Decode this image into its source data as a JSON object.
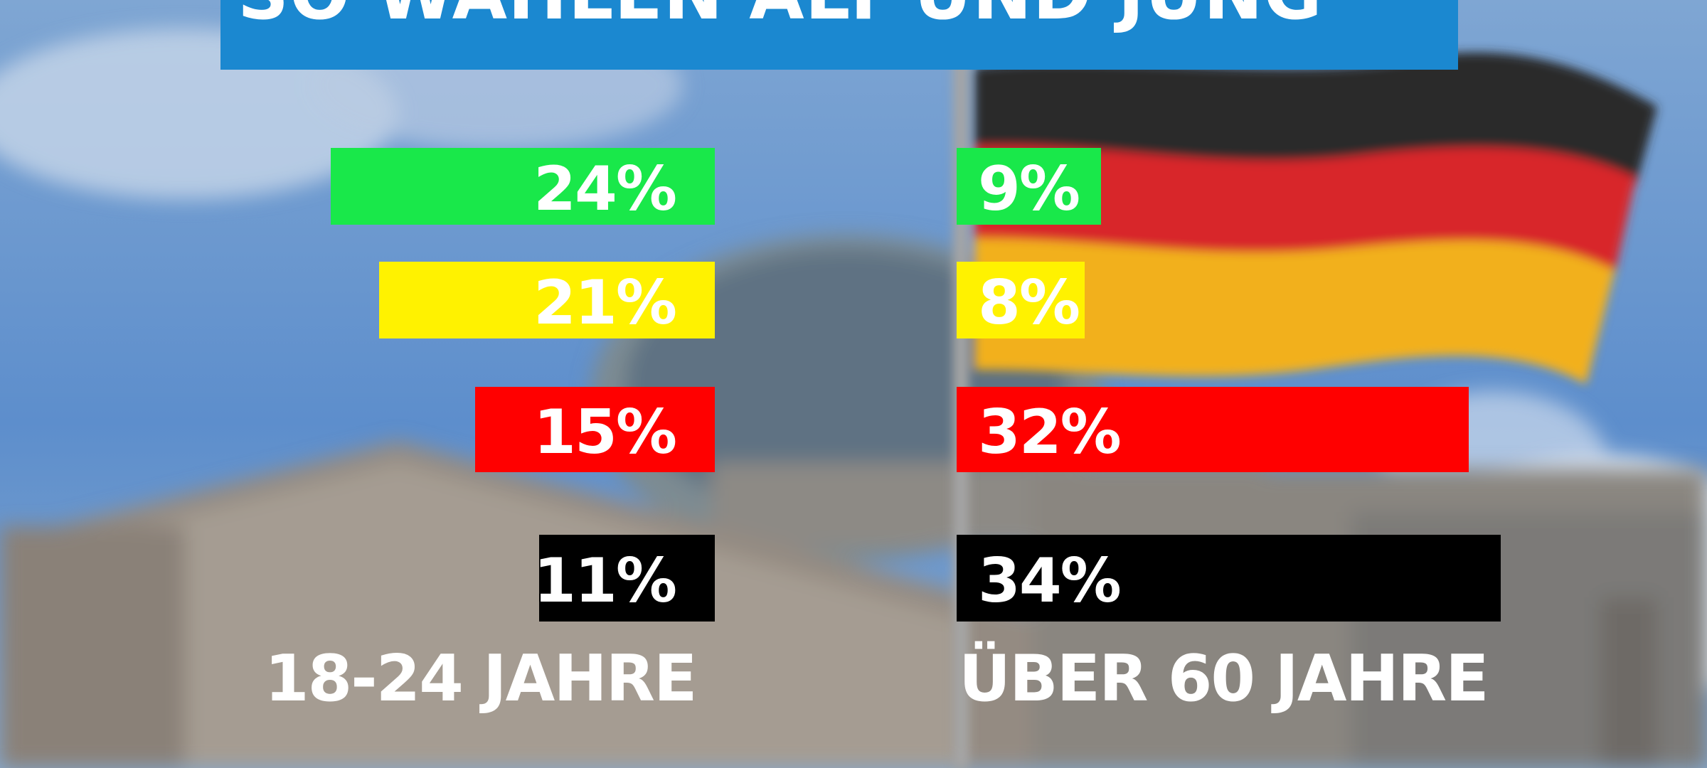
{
  "title": "SO WÄHLEN ALT UND JUNG",
  "chart_data": {
    "type": "bar",
    "groups": [
      "18-24 JAHRE",
      "ÜBER 60 JAHRE"
    ],
    "series": [
      {
        "color": "#19e84a",
        "values": [
          24,
          9
        ]
      },
      {
        "color": "#fff200",
        "values": [
          21,
          8
        ]
      },
      {
        "color": "#ff0000",
        "values": [
          15,
          32
        ]
      },
      {
        "color": "#000000",
        "values": [
          11,
          34
        ]
      }
    ],
    "value_suffix": "%"
  }
}
